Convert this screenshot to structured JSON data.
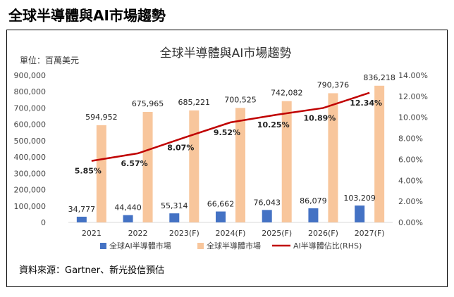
{
  "page": {
    "heading": "全球半導體與AI市場趨勢"
  },
  "chart_data": {
    "type": "bar",
    "title": "全球半導體與AI市場趨勢",
    "unit_label": "單位：百萬美元",
    "categories": [
      "2021",
      "2022",
      "2023(F)",
      "2024(F)",
      "2025(F)",
      "2026(F)",
      "2027(F)"
    ],
    "series": [
      {
        "name": "全球AI半導體市場",
        "type": "bar",
        "color": "#4472c4",
        "values": [
          34777,
          44440,
          55314,
          66662,
          76043,
          86079,
          103209
        ],
        "labels": [
          "34,777",
          "44,440",
          "55,314",
          "66,662",
          "76,043",
          "86,079",
          "103,209"
        ]
      },
      {
        "name": "全球半導體市場",
        "type": "bar",
        "color": "#f8c69c",
        "values": [
          594952,
          675965,
          685221,
          700525,
          742082,
          790376,
          836218
        ],
        "labels": [
          "594,952",
          "675,965",
          "685,221",
          "700,525",
          "742,082",
          "790,376",
          "836,218"
        ]
      },
      {
        "name": "AI半導體佔比(RHS)",
        "type": "line",
        "axis": "right",
        "color": "#c00000",
        "values": [
          5.85,
          6.57,
          8.07,
          9.52,
          10.25,
          10.89,
          12.34
        ],
        "labels": [
          "5.85%",
          "6.57%",
          "8.07%",
          "9.52%",
          "10.25%",
          "10.89%",
          "12.34%"
        ]
      }
    ],
    "ylim": [
      0,
      900000
    ],
    "y2lim": [
      0,
      14
    ],
    "left_ticks": [
      "0",
      "100,000",
      "200,000",
      "300,000",
      "400,000",
      "500,000",
      "600,000",
      "700,000",
      "800,000",
      "900,000"
    ],
    "right_ticks": [
      "0.00%",
      "2.00%",
      "4.00%",
      "6.00%",
      "8.00%",
      "10.00%",
      "12.00%",
      "14.00%"
    ],
    "grid": false,
    "legend_position": "bottom",
    "source": "資料來源：Gartner、新光投信預估"
  }
}
